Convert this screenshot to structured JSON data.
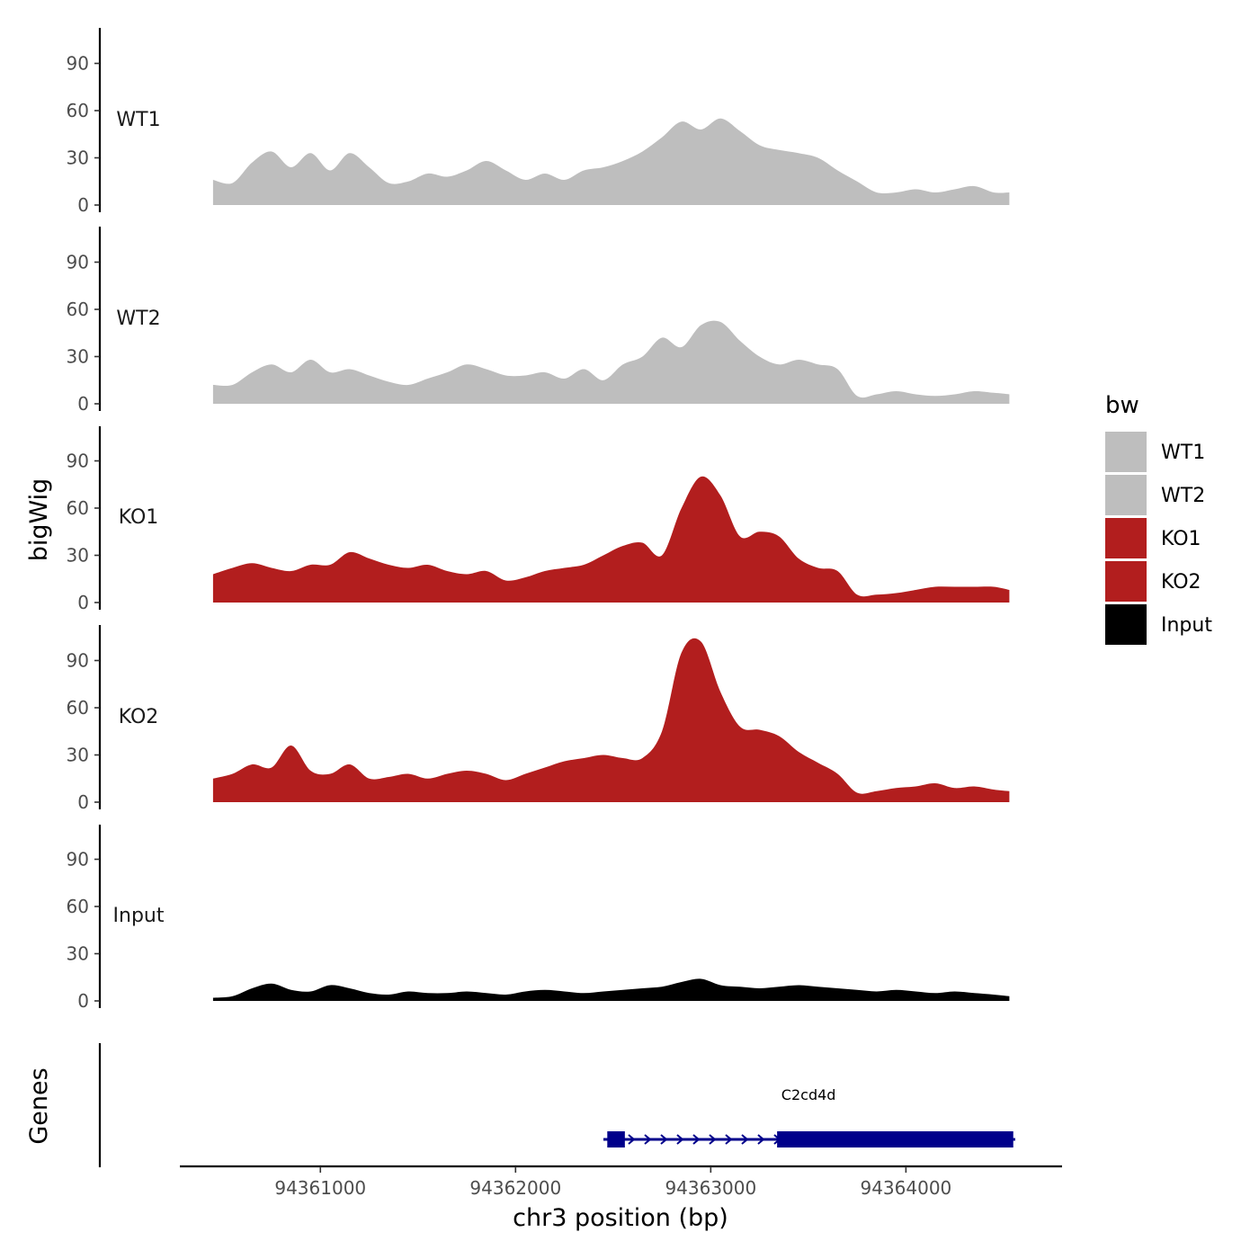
{
  "chart_data": {
    "type": "area",
    "title": "",
    "y_axis_title": "bigWig",
    "x_axis_title": "chr3 position (bp)",
    "genes_axis_title": "Genes",
    "xlim": [
      94360280,
      94364800
    ],
    "ylim": [
      0,
      112
    ],
    "y_ticks": [
      0,
      30,
      60,
      90
    ],
    "x_ticks": [
      94361000,
      94362000,
      94363000,
      94364000
    ],
    "x_tick_labels": [
      "94361000",
      "94362000",
      "94363000",
      "94364000"
    ],
    "legend": {
      "title": "bw",
      "position": "right",
      "entries": [
        {
          "label": "WT1",
          "color": "#BEBEBE"
        },
        {
          "label": "WT2",
          "color": "#BEBEBE"
        },
        {
          "label": "KO1",
          "color": "#B21E1E"
        },
        {
          "label": "KO2",
          "color": "#B21E1E"
        },
        {
          "label": "Input",
          "color": "#000000"
        }
      ]
    },
    "x": [
      94360450,
      94360550,
      94360650,
      94360750,
      94360850,
      94360950,
      94361050,
      94361150,
      94361250,
      94361350,
      94361450,
      94361550,
      94361650,
      94361750,
      94361850,
      94361950,
      94362050,
      94362150,
      94362250,
      94362350,
      94362450,
      94362550,
      94362650,
      94362750,
      94362850,
      94362950,
      94363050,
      94363150,
      94363250,
      94363350,
      94363450,
      94363550,
      94363650,
      94363750,
      94363850,
      94363950,
      94364050,
      94364150,
      94364250,
      94364350,
      94364450,
      94364530
    ],
    "series": [
      {
        "name": "WT1",
        "color": "#BEBEBE",
        "values": [
          16,
          14,
          27,
          34,
          24,
          33,
          22,
          33,
          24,
          14,
          15,
          20,
          18,
          22,
          28,
          22,
          16,
          20,
          16,
          22,
          24,
          28,
          34,
          43,
          53,
          48,
          55,
          47,
          38,
          35,
          33,
          30,
          22,
          15,
          8,
          8,
          10,
          8,
          10,
          12,
          8,
          8
        ]
      },
      {
        "name": "WT2",
        "color": "#BEBEBE",
        "values": [
          12,
          12,
          20,
          25,
          20,
          28,
          20,
          22,
          18,
          14,
          12,
          16,
          20,
          25,
          22,
          18,
          18,
          20,
          16,
          22,
          15,
          25,
          30,
          42,
          36,
          50,
          52,
          40,
          30,
          25,
          28,
          25,
          22,
          5,
          6,
          8,
          6,
          5,
          6,
          8,
          7,
          6
        ]
      },
      {
        "name": "KO1",
        "color": "#B21E1E",
        "values": [
          18,
          22,
          25,
          22,
          20,
          24,
          24,
          32,
          28,
          24,
          22,
          24,
          20,
          18,
          20,
          14,
          16,
          20,
          22,
          24,
          30,
          36,
          38,
          30,
          60,
          80,
          68,
          42,
          45,
          42,
          28,
          22,
          20,
          5,
          5,
          6,
          8,
          10,
          10,
          10,
          10,
          8
        ]
      },
      {
        "name": "KO2",
        "color": "#B21E1E",
        "values": [
          15,
          18,
          24,
          22,
          36,
          20,
          18,
          24,
          15,
          16,
          18,
          15,
          18,
          20,
          18,
          14,
          18,
          22,
          26,
          28,
          30,
          28,
          28,
          45,
          95,
          102,
          70,
          48,
          46,
          42,
          32,
          25,
          18,
          6,
          7,
          9,
          10,
          12,
          9,
          10,
          8,
          7
        ]
      },
      {
        "name": "Input",
        "color": "#000000",
        "values": [
          2,
          3,
          8,
          11,
          7,
          6,
          10,
          8,
          5,
          4,
          6,
          5,
          5,
          6,
          5,
          4,
          6,
          7,
          6,
          5,
          6,
          7,
          8,
          9,
          12,
          14,
          10,
          9,
          8,
          9,
          10,
          9,
          8,
          7,
          6,
          7,
          6,
          5,
          6,
          5,
          4,
          3
        ]
      }
    ],
    "gene": {
      "name": "C2cd4d",
      "start": 94362450,
      "end": 94364560,
      "exons": [
        [
          94362470,
          94362560
        ],
        [
          94363340,
          94364550
        ]
      ],
      "color": "#00008B"
    }
  }
}
